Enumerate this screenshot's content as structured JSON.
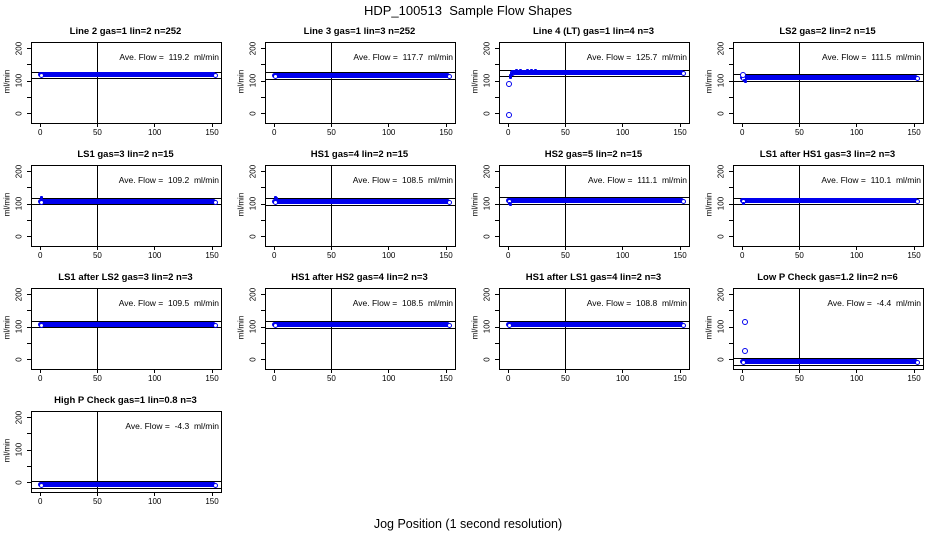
{
  "figure": {
    "title": "HDP_100513  Sample Flow Shapes",
    "xlabel": "Jog Position (1 second resolution)"
  },
  "chart_data": {
    "type": "scatter",
    "title": "HDP_100513  Sample Flow Shapes",
    "xlabel": "Jog Position (1 second resolution)",
    "ylabel": "ml/min",
    "xlim": [
      -8,
      157
    ],
    "ylim": [
      -25,
      220
    ],
    "xticks": [
      0,
      50,
      100,
      150
    ],
    "yticks": [
      0,
      50,
      100,
      150,
      200
    ],
    "ytick_labels": [
      "0",
      "",
      "100",
      "",
      "200"
    ],
    "vline_x": 50,
    "ref_line_offset": 10,
    "point_color": "#0000EE",
    "layout": {
      "columns": 4,
      "rows": 4
    },
    "panels": [
      {
        "title": "Line 2 gas=1 lin=2 n=252",
        "ave_flow": 119.2,
        "ave_label": "Ave. Flow =  119.2  ml/min",
        "band": {
          "y": 119.2,
          "x0": 0,
          "x1": 152
        },
        "outliers": [],
        "marks": []
      },
      {
        "title": "Line 3 gas=1 lin=3 n=252",
        "ave_flow": 117.7,
        "ave_label": "Ave. Flow =  117.7  ml/min",
        "band": {
          "y": 117.7,
          "x0": 0,
          "x1": 152
        },
        "outliers": [],
        "marks": []
      },
      {
        "title": "Line 4 (LT) gas=1 lin=4 n=3",
        "ave_flow": 125.7,
        "ave_label": "Ave. Flow =  125.7  ml/min",
        "band": {
          "y": 125.7,
          "x0": 3,
          "x1": 152
        },
        "outliers": [
          [
            1,
            92
          ],
          [
            1,
            -2
          ]
        ],
        "marks": [
          [
            2,
            112
          ],
          [
            2,
            118
          ],
          [
            3,
            121
          ],
          [
            4,
            125
          ],
          [
            5,
            130
          ],
          [
            7,
            132
          ],
          [
            9,
            128
          ],
          [
            11,
            133
          ],
          [
            14,
            131
          ],
          [
            17,
            134
          ],
          [
            20,
            132
          ],
          [
            24,
            133
          ],
          [
            28,
            131
          ]
        ]
      },
      {
        "title": "LS2 gas=2 lin=2 n=15",
        "ave_flow": 111.5,
        "ave_label": "Ave. Flow =  111.5  ml/min",
        "band": {
          "y": 111.5,
          "x0": 0,
          "x1": 152
        },
        "outliers": [
          [
            1,
            119
          ]
        ],
        "marks": [
          [
            2,
            102
          ],
          [
            3,
            100
          ]
        ]
      },
      {
        "title": "LS1 gas=3 lin=2 n=15",
        "ave_flow": 109.2,
        "ave_label": "Ave. Flow =  109.2  ml/min",
        "band": {
          "y": 109.2,
          "x0": 0,
          "x1": 152
        },
        "outliers": [],
        "marks": [
          [
            1,
            120
          ]
        ]
      },
      {
        "title": "HS1 gas=4 lin=2 n=15",
        "ave_flow": 108.5,
        "ave_label": "Ave. Flow =  108.5  ml/min",
        "band": {
          "y": 108.5,
          "x0": 0,
          "x1": 152
        },
        "outliers": [],
        "marks": [
          [
            1,
            121
          ],
          [
            2,
            119
          ]
        ]
      },
      {
        "title": "HS2 gas=5 lin=2 n=15",
        "ave_flow": 111.1,
        "ave_label": "Ave. Flow =  111.1  ml/min",
        "band": {
          "y": 111.1,
          "x0": 0,
          "x1": 152
        },
        "outliers": [],
        "marks": [
          [
            1,
            102
          ],
          [
            2,
            100
          ]
        ]
      },
      {
        "title": "LS1 after HS1 gas=3 lin=2 n=3",
        "ave_flow": 110.1,
        "ave_label": "Ave. Flow =  110.1  ml/min",
        "band": {
          "y": 110.1,
          "x0": 0,
          "x1": 152
        },
        "outliers": [],
        "marks": [
          [
            1,
            103
          ]
        ]
      },
      {
        "title": "LS1 after LS2 gas=3 lin=2 n=3",
        "ave_flow": 109.5,
        "ave_label": "Ave. Flow =  109.5  ml/min",
        "band": {
          "y": 109.5,
          "x0": 0,
          "x1": 152
        },
        "outliers": [],
        "marks": []
      },
      {
        "title": "HS1 after HS2 gas=4 lin=2 n=3",
        "ave_flow": 108.5,
        "ave_label": "Ave. Flow =  108.5  ml/min",
        "band": {
          "y": 108.5,
          "x0": 0,
          "x1": 152
        },
        "outliers": [],
        "marks": []
      },
      {
        "title": "HS1 after LS1 gas=4 lin=2 n=3",
        "ave_flow": 108.8,
        "ave_label": "Ave. Flow =  108.8  ml/min",
        "band": {
          "y": 108.8,
          "x0": 0,
          "x1": 152
        },
        "outliers": [],
        "marks": []
      },
      {
        "title": "Low P Check gas=1.2 lin=2 n=6",
        "ave_flow": -4.4,
        "ave_label": "Ave. Flow =  -4.4  ml/min",
        "band": {
          "y": -4.4,
          "x0": 0,
          "x1": 152
        },
        "outliers": [
          [
            2,
            115
          ],
          [
            2,
            28
          ]
        ],
        "marks": []
      },
      {
        "title": "High P Check gas=1 lin=0.8 n=3",
        "ave_flow": -4.3,
        "ave_label": "Ave. Flow =  -4.3  ml/min",
        "band": {
          "y": -4.3,
          "x0": 0,
          "x1": 152
        },
        "outliers": [],
        "marks": []
      }
    ]
  }
}
